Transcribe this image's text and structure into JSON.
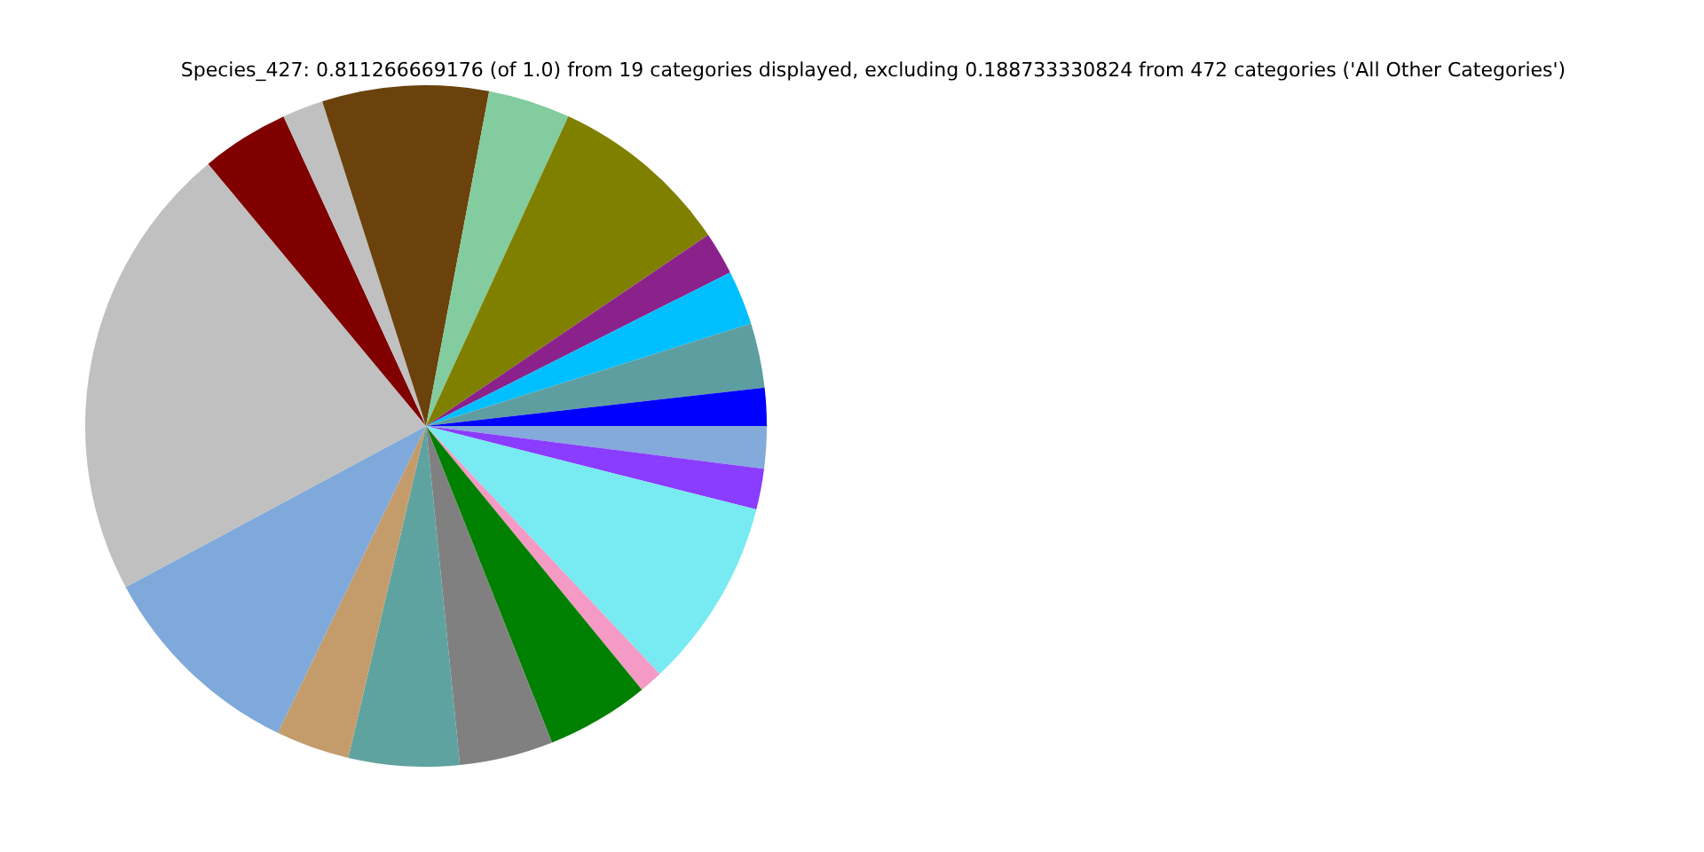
{
  "chart_data": {
    "type": "pie",
    "title": "Species_427: 0.811266669176 (of 1.0) from 19 categories displayed, excluding 0.188733330824 from 472 categories ('All Other Categories')",
    "categories": [
      null,
      null,
      null,
      null,
      null,
      null,
      null,
      null,
      null,
      null,
      null,
      null,
      null,
      null,
      null,
      null,
      null,
      null,
      null
    ],
    "values": [
      1.8,
      3.06,
      2.58,
      2.03,
      8.67,
      3.89,
      7.89,
      1.94,
      4.17,
      21.8,
      10.0,
      3.5,
      5.25,
      4.44,
      4.89,
      1.11,
      9.03,
      1.94,
      2.0
    ],
    "colors": [
      "#0000ff",
      "#5f9ea0",
      "#00bfff",
      "#8b228b",
      "#808000",
      "#82cc9f",
      "#6b420b",
      "#c0c0c0",
      "#800000",
      "#c0c0c0",
      "#7ea9da",
      "#c49c6c",
      "#5fa3a0",
      "#808080",
      "#008000",
      "#f49ac4",
      "#78eaf2",
      "#8a3cff",
      "#84a9db"
    ],
    "legend": false
  }
}
